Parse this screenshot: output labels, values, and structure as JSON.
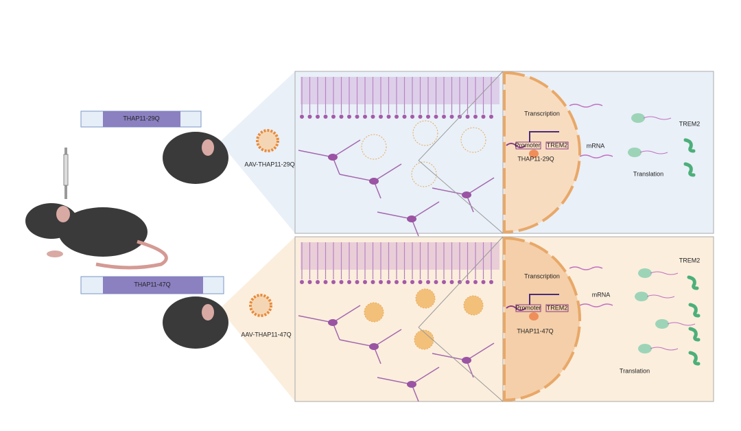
{
  "panels": [
    {
      "construct": "THAP11-29Q",
      "virus": "AAV-THAP11-29Q",
      "transcription": "Transcription",
      "promoter": "Promoter",
      "gene": "TREM2",
      "factor": "THAP11-29Q",
      "mrna": "mRNA",
      "protein": "TREM2",
      "translation": "Translation"
    },
    {
      "construct": "THAP11-47Q",
      "virus": "AAV-THAP11-47Q",
      "transcription": "Transcription",
      "promoter": "Promoter",
      "gene": "TREM2",
      "factor": "THAP11-47Q",
      "mrna": "mRNA",
      "protein": "TREM2",
      "translation": "Translation"
    }
  ]
}
